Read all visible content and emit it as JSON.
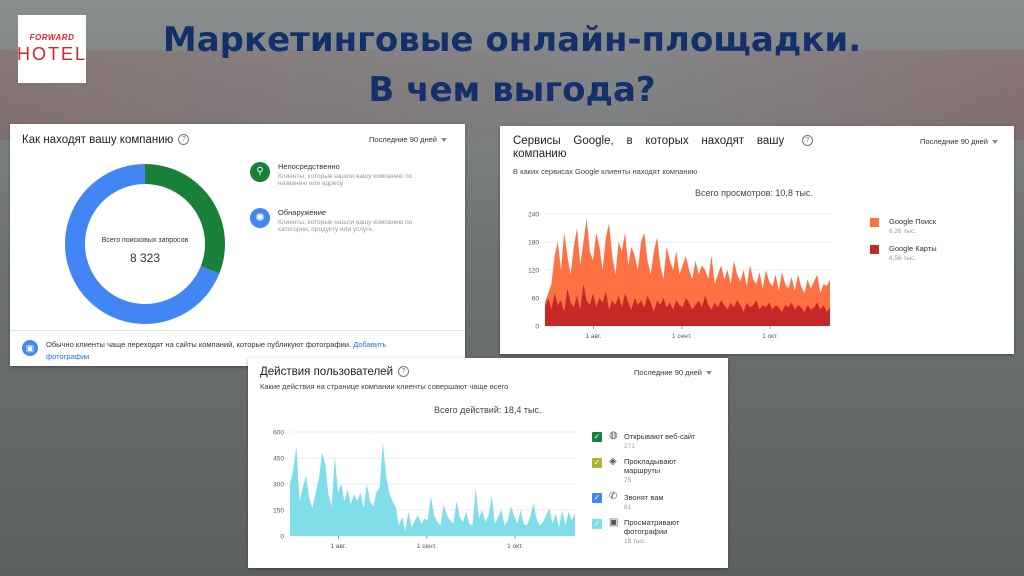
{
  "slide": {
    "title_line1": "Маркетинговые онлайн-площадки.",
    "title_line2": "В чем выгода?",
    "logo_top": "FORWARD",
    "logo_bottom": "HOTEL"
  },
  "card1": {
    "title": "Как находят вашу компанию",
    "period": "Последние 90 дней",
    "center_label": "Всего поисковых запросов",
    "center_value": "8 323",
    "legend": [
      {
        "title": "Непосредственно",
        "desc1": "Клиенты, которые нашли вашу компанию по",
        "desc2": "названию или адресу",
        "color": "#188038"
      },
      {
        "title": "Обнаружение",
        "desc1": "Клиенты, которые нашли вашу компанию по",
        "desc2": "категории, продукту или услуге.",
        "color": "#4285f4"
      }
    ],
    "footer_text": "Обычно клиенты чаще переходят на сайты компаний, которые публикуют фотографии.",
    "footer_link1": "Добавить",
    "footer_link2": "фотографии",
    "chart_data": {
      "type": "pie",
      "title": "Всего поисковых запросов",
      "categories": [
        "Непосредственно",
        "Обнаружение"
      ],
      "values": [
        0.31,
        0.69
      ],
      "colors": [
        "#188038",
        "#4285f4"
      ]
    }
  },
  "card2": {
    "title1": "Сервисы",
    "title2": "Google,",
    "title3": "в",
    "title4": "которых",
    "title5": "находят",
    "title6": "вашу",
    "title_line2": "компанию",
    "subtitle": "В каких сервисах Google клиенты находят компанию",
    "period": "Последние 90 дней",
    "total": "Всего просмотров: 10,8 тыс.",
    "legend": [
      {
        "name": "Google Поиск",
        "value": "6,26 тыс.",
        "color": "#ff7043"
      },
      {
        "name": "Google Карты",
        "value": "4,56 тыс.",
        "color": "#c62828"
      }
    ],
    "chart_data": {
      "type": "area",
      "ylim": [
        0,
        240
      ],
      "yticks": [
        "0",
        "60",
        "120",
        "180",
        "240"
      ],
      "xticks": [
        "1 авг.",
        "1 сент.",
        "1 окт."
      ],
      "xtick_pos": [
        17,
        48,
        79
      ],
      "series": [
        {
          "name": "Google Карты",
          "values": [
            40,
            60,
            35,
            70,
            45,
            55,
            30,
            80,
            50,
            40,
            65,
            35,
            90,
            55,
            45,
            70,
            40,
            60,
            50,
            75,
            35,
            55,
            45,
            65,
            40,
            70,
            50,
            35,
            60,
            45,
            55,
            40,
            65,
            50,
            30,
            55,
            45,
            60,
            40,
            50,
            35,
            55,
            45,
            40,
            60,
            50,
            35,
            45,
            55,
            40,
            65,
            45,
            35,
            50,
            40,
            55,
            45,
            35,
            50,
            40,
            55,
            45,
            30,
            50,
            40,
            45,
            55,
            35,
            45,
            40,
            50,
            35,
            45,
            40,
            30,
            45,
            40,
            50,
            35,
            45,
            40,
            30,
            45,
            35,
            40,
            50,
            35,
            45,
            30,
            40
          ]
        },
        {
          "name": "Google Поиск",
          "values": [
            50,
            70,
            90,
            150,
            180,
            120,
            200,
            150,
            110,
            170,
            210,
            130,
            180,
            230,
            160,
            140,
            200,
            170,
            120,
            190,
            220,
            150,
            110,
            180,
            160,
            200,
            130,
            170,
            150,
            120,
            180,
            200,
            140,
            110,
            160,
            190,
            130,
            100,
            170,
            140,
            120,
            160,
            110,
            130,
            150,
            120,
            100,
            140,
            110,
            130,
            120,
            100,
            150,
            90,
            110,
            130,
            100,
            120,
            90,
            140,
            110,
            95,
            120,
            85,
            130,
            100,
            90,
            115,
            80,
            120,
            95,
            85,
            110,
            75,
            115,
            90,
            80,
            105,
            75,
            110,
            85,
            70,
            100,
            80,
            95,
            110,
            70,
            90,
            85,
            100
          ]
        }
      ]
    }
  },
  "card3": {
    "title": "Действия пользователей",
    "subtitle": "Какие действия на странице компании клиенты совершают чаще всего",
    "period": "Последние 90 дней",
    "total": "Всего действий: 18,4 тыс.",
    "legend": [
      {
        "name": "Открывают веб-сайт",
        "value": "271",
        "color": "#188038",
        "icon": "globe-icon"
      },
      {
        "name": "Прокладывают",
        "name2": "маршруты",
        "value": "75",
        "color": "#afb42b",
        "icon": "directions-icon"
      },
      {
        "name": "Звонят вам",
        "value": "61",
        "color": "#4285f4",
        "icon": "phone-icon"
      },
      {
        "name": "Просматривают",
        "name2": "фотографии",
        "value": "18 тыс.",
        "color": "#80deea",
        "icon": "photo-icon"
      }
    ],
    "chart_data": {
      "type": "area",
      "ylim": [
        0,
        600
      ],
      "yticks": [
        "0",
        "150",
        "300",
        "450",
        "600"
      ],
      "xticks": [
        "1 авг.",
        "1 сент.",
        "1 окт."
      ],
      "xtick_pos": [
        17,
        48,
        79
      ],
      "series": [
        {
          "name": "Просматривают фотографии",
          "values": [
            300,
            380,
            520,
            200,
            280,
            350,
            220,
            160,
            250,
            330,
            480,
            420,
            240,
            170,
            460,
            250,
            300,
            200,
            270,
            180,
            240,
            200,
            250,
            160,
            300,
            200,
            170,
            250,
            280,
            540,
            350,
            250,
            200,
            170,
            60,
            110,
            30,
            140,
            50,
            90,
            120,
            70,
            100,
            90,
            230,
            120,
            80,
            60,
            180,
            120,
            90,
            70,
            200,
            110,
            80,
            140,
            70,
            60,
            280,
            100,
            150,
            80,
            120,
            230,
            70,
            110,
            150,
            60,
            90,
            170,
            120,
            70,
            150,
            70,
            60,
            110,
            190,
            100,
            60,
            80,
            120,
            160,
            70,
            130,
            50,
            150,
            60,
            140,
            90,
            130
          ]
        }
      ]
    }
  }
}
